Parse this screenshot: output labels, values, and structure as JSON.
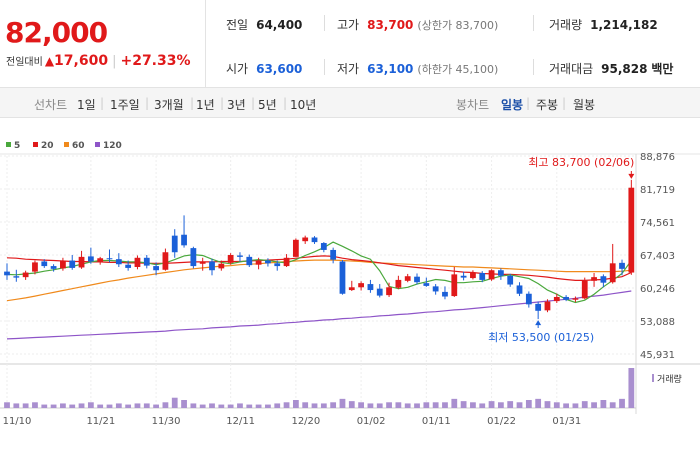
{
  "header": {
    "price": "82,000",
    "change_label": "전일대비",
    "change_arrow": "▲",
    "change_value": "17,600",
    "change_pct": "+27.33%",
    "stats": {
      "prev_close": {
        "label": "전일",
        "value": "64,400"
      },
      "high": {
        "label": "고가",
        "value": "83,700",
        "sub": "(상한가 83,700)"
      },
      "volume": {
        "label": "거래량",
        "value": "1,214,182"
      },
      "open": {
        "label": "시가",
        "value": "63,600"
      },
      "low": {
        "label": "저가",
        "value": "63,100",
        "sub": "(하한가 45,100)"
      },
      "amount": {
        "label": "거래대금",
        "value": "95,828",
        "unit": "백만"
      }
    }
  },
  "periods": {
    "label": "선차트",
    "items": [
      "1일",
      "1주일",
      "3개월",
      "1년",
      "3년",
      "5년",
      "10년"
    ]
  },
  "candle_types": {
    "label": "봉차트",
    "items": [
      "일봉",
      "주봉",
      "월봉"
    ],
    "active": "일봉"
  },
  "colors": {
    "up": "#e0191a",
    "down": "#1b60d8",
    "ma5": "#4aa83c",
    "ma20": "#e0191a",
    "ma60": "#f08a1c",
    "ma120": "#8e55c8",
    "volume": "#a98fcf"
  },
  "chart_data": {
    "type": "candlestick",
    "legend": [
      "5",
      "20",
      "60",
      "120"
    ],
    "y_ticks": [
      "88,876",
      "81,719",
      "74,561",
      "67,403",
      "60,246",
      "53,088",
      "45,931"
    ],
    "ylim": [
      45931,
      88876
    ],
    "x_ticks": [
      {
        "label": "11/10",
        "index": 0
      },
      {
        "label": "11/21",
        "index": 9
      },
      {
        "label": "11/30",
        "index": 16
      },
      {
        "label": "12/11",
        "index": 24
      },
      {
        "label": "12/20",
        "index": 31
      },
      {
        "label": "01/02",
        "index": 38
      },
      {
        "label": "01/11",
        "index": 45
      },
      {
        "label": "01/22",
        "index": 52
      },
      {
        "label": "01/31",
        "index": 59
      }
    ],
    "high_annotation": "최고 83,700 (02/06)",
    "low_annotation": "최저 53,500 (01/25)",
    "volume_label": "거래량",
    "candles": [
      {
        "o": 63800,
        "h": 65600,
        "l": 62000,
        "c": 63000
      },
      {
        "o": 62800,
        "h": 64200,
        "l": 61600,
        "c": 62500
      },
      {
        "o": 62600,
        "h": 64000,
        "l": 62000,
        "c": 63600
      },
      {
        "o": 63800,
        "h": 66200,
        "l": 63200,
        "c": 65800
      },
      {
        "o": 66000,
        "h": 66500,
        "l": 64600,
        "c": 65000
      },
      {
        "o": 65000,
        "h": 65400,
        "l": 63800,
        "c": 64400
      },
      {
        "o": 64500,
        "h": 66800,
        "l": 64000,
        "c": 66200
      },
      {
        "o": 66200,
        "h": 67400,
        "l": 64200,
        "c": 64600
      },
      {
        "o": 64700,
        "h": 68300,
        "l": 64400,
        "c": 67000
      },
      {
        "o": 67100,
        "h": 69000,
        "l": 65500,
        "c": 66000
      },
      {
        "o": 66000,
        "h": 67000,
        "l": 65300,
        "c": 66700
      },
      {
        "o": 66700,
        "h": 68600,
        "l": 65800,
        "c": 66500
      },
      {
        "o": 66500,
        "h": 67800,
        "l": 64800,
        "c": 65400
      },
      {
        "o": 65300,
        "h": 66200,
        "l": 64000,
        "c": 64600
      },
      {
        "o": 64800,
        "h": 67300,
        "l": 64300,
        "c": 66800
      },
      {
        "o": 66800,
        "h": 67400,
        "l": 64500,
        "c": 65100
      },
      {
        "o": 65000,
        "h": 65800,
        "l": 63000,
        "c": 64100
      },
      {
        "o": 64200,
        "h": 68800,
        "l": 64000,
        "c": 68000
      },
      {
        "o": 71600,
        "h": 73000,
        "l": 66800,
        "c": 68000
      },
      {
        "o": 71800,
        "h": 76000,
        "l": 69000,
        "c": 69500
      },
      {
        "o": 68900,
        "h": 69200,
        "l": 64500,
        "c": 65000
      },
      {
        "o": 65500,
        "h": 66800,
        "l": 64000,
        "c": 66000
      },
      {
        "o": 66000,
        "h": 66600,
        "l": 63000,
        "c": 64100
      },
      {
        "o": 64500,
        "h": 66200,
        "l": 64000,
        "c": 65500
      },
      {
        "o": 65700,
        "h": 67800,
        "l": 65300,
        "c": 67400
      },
      {
        "o": 67300,
        "h": 68000,
        "l": 66000,
        "c": 67000
      },
      {
        "o": 67000,
        "h": 67500,
        "l": 64800,
        "c": 65200
      },
      {
        "o": 65300,
        "h": 66800,
        "l": 64300,
        "c": 66100
      },
      {
        "o": 66200,
        "h": 66700,
        "l": 64900,
        "c": 65600
      },
      {
        "o": 65600,
        "h": 66200,
        "l": 64000,
        "c": 65000
      },
      {
        "o": 65000,
        "h": 67600,
        "l": 64800,
        "c": 66800
      },
      {
        "o": 67000,
        "h": 71000,
        "l": 67000,
        "c": 70700
      },
      {
        "o": 70400,
        "h": 71600,
        "l": 69800,
        "c": 71200
      },
      {
        "o": 71200,
        "h": 71500,
        "l": 69800,
        "c": 70200
      },
      {
        "o": 70000,
        "h": 70200,
        "l": 68000,
        "c": 68500
      },
      {
        "o": 68500,
        "h": 69000,
        "l": 65600,
        "c": 66400
      },
      {
        "o": 66000,
        "h": 66300,
        "l": 58800,
        "c": 59000
      },
      {
        "o": 59800,
        "h": 61800,
        "l": 59600,
        "c": 60400
      },
      {
        "o": 60400,
        "h": 61700,
        "l": 59700,
        "c": 61300
      },
      {
        "o": 61100,
        "h": 62000,
        "l": 59200,
        "c": 59800
      },
      {
        "o": 60100,
        "h": 61100,
        "l": 58200,
        "c": 58600
      },
      {
        "o": 58700,
        "h": 61400,
        "l": 58300,
        "c": 60400
      },
      {
        "o": 60300,
        "h": 62900,
        "l": 60000,
        "c": 62000
      },
      {
        "o": 61800,
        "h": 63300,
        "l": 61500,
        "c": 62800
      },
      {
        "o": 62700,
        "h": 63400,
        "l": 61000,
        "c": 61500
      },
      {
        "o": 61300,
        "h": 62500,
        "l": 60500,
        "c": 60700
      },
      {
        "o": 60600,
        "h": 61100,
        "l": 58800,
        "c": 59500
      },
      {
        "o": 59400,
        "h": 60600,
        "l": 57800,
        "c": 58400
      },
      {
        "o": 58500,
        "h": 64800,
        "l": 58300,
        "c": 63200
      },
      {
        "o": 62900,
        "h": 63800,
        "l": 61900,
        "c": 62500
      },
      {
        "o": 62400,
        "h": 64100,
        "l": 62100,
        "c": 63500
      },
      {
        "o": 63500,
        "h": 63900,
        "l": 61500,
        "c": 62000
      },
      {
        "o": 62100,
        "h": 64300,
        "l": 61800,
        "c": 64100
      },
      {
        "o": 64100,
        "h": 64500,
        "l": 62000,
        "c": 62900
      },
      {
        "o": 62900,
        "h": 63300,
        "l": 60500,
        "c": 61000
      },
      {
        "o": 60800,
        "h": 61500,
        "l": 58500,
        "c": 59000
      },
      {
        "o": 59000,
        "h": 59500,
        "l": 56000,
        "c": 56700
      },
      {
        "o": 56800,
        "h": 57300,
        "l": 53500,
        "c": 55300
      },
      {
        "o": 55400,
        "h": 57800,
        "l": 55000,
        "c": 57300
      },
      {
        "o": 57400,
        "h": 59000,
        "l": 57000,
        "c": 58300
      },
      {
        "o": 58300,
        "h": 58700,
        "l": 57400,
        "c": 57700
      },
      {
        "o": 57700,
        "h": 58400,
        "l": 57200,
        "c": 58000
      },
      {
        "o": 58000,
        "h": 62500,
        "l": 57800,
        "c": 61800
      },
      {
        "o": 61800,
        "h": 63500,
        "l": 60500,
        "c": 62600
      },
      {
        "o": 62800,
        "h": 63200,
        "l": 60400,
        "c": 61400
      },
      {
        "o": 61500,
        "h": 69800,
        "l": 61200,
        "c": 65600
      },
      {
        "o": 65700,
        "h": 66400,
        "l": 63000,
        "c": 64400
      },
      {
        "o": 63600,
        "h": 83700,
        "l": 63100,
        "c": 82000
      }
    ],
    "volumes": [
      5,
      4,
      4,
      5,
      3,
      3,
      4,
      3,
      4,
      5,
      3,
      3,
      4,
      3,
      4,
      4,
      3,
      5,
      9,
      7,
      4,
      3,
      4,
      3,
      3,
      4,
      3,
      3,
      3,
      4,
      5,
      7,
      5,
      4,
      4,
      5,
      8,
      6,
      5,
      4,
      4,
      5,
      5,
      4,
      4,
      5,
      5,
      5,
      8,
      6,
      5,
      4,
      6,
      5,
      6,
      5,
      7,
      8,
      6,
      5,
      4,
      4,
      6,
      5,
      7,
      5,
      8,
      35
    ],
    "ma5": [
      63200,
      63100,
      63300,
      63500,
      63900,
      64200,
      64600,
      64900,
      65400,
      65900,
      66200,
      66200,
      66100,
      65900,
      65900,
      65700,
      65300,
      65700,
      66400,
      67200,
      67500,
      67300,
      66500,
      65800,
      65500,
      65900,
      66200,
      66400,
      66200,
      65900,
      65700,
      66400,
      67300,
      68100,
      69000,
      70200,
      69300,
      68300,
      67200,
      66500,
      64000,
      60600,
      60100,
      60400,
      61100,
      61600,
      62100,
      61900,
      61400,
      61400,
      61600,
      61700,
      62300,
      62800,
      63100,
      62700,
      62300,
      61200,
      59800,
      58900,
      57800,
      57100,
      57600,
      58900,
      60500,
      61900,
      63400,
      66200
    ],
    "ma20": [
      66800,
      66700,
      66500,
      66400,
      66300,
      66200,
      66100,
      66000,
      66000,
      65900,
      65900,
      65800,
      65800,
      65700,
      65700,
      65600,
      65600,
      65600,
      65700,
      65800,
      65900,
      65900,
      65900,
      66000,
      66000,
      66000,
      66100,
      66200,
      66300,
      66400,
      66500,
      66700,
      66900,
      67100,
      67200,
      67100,
      66700,
      66400,
      66200,
      66000,
      65700,
      65400,
      65100,
      64900,
      64700,
      64500,
      64300,
      64100,
      63900,
      63700,
      63600,
      63400,
      63300,
      63200,
      63200,
      63100,
      63000,
      62800,
      62600,
      62300,
      62100,
      61900,
      61900,
      62000,
      62100,
      62400,
      62700,
      63600
    ],
    "ma60": [
      57500,
      57800,
      58100,
      58500,
      58900,
      59300,
      59700,
      60100,
      60500,
      60900,
      61300,
      61700,
      62000,
      62400,
      62700,
      63000,
      63300,
      63600,
      63900,
      64200,
      64400,
      64600,
      64800,
      65000,
      65100,
      65300,
      65400,
      65500,
      65700,
      65800,
      66000,
      66100,
      66200,
      66300,
      66300,
      66300,
      66200,
      66100,
      66000,
      65800,
      65700,
      65600,
      65500,
      65400,
      65300,
      65200,
      65100,
      65000,
      64900,
      64800,
      64800,
      64700,
      64600,
      64500,
      64400,
      64300,
      64200,
      64100,
      64000,
      63900,
      63800,
      63800,
      63800,
      63800,
      63800,
      63800,
      63900,
      64100
    ],
    "ma120": [
      49200,
      49300,
      49400,
      49500,
      49600,
      49700,
      49800,
      49900,
      50000,
      50100,
      50200,
      50300,
      50400,
      50500,
      50600,
      50700,
      50800,
      50900,
      51100,
      51200,
      51300,
      51400,
      51600,
      51700,
      51800,
      52000,
      52100,
      52200,
      52400,
      52500,
      52700,
      52800,
      53000,
      53100,
      53300,
      53400,
      53600,
      53700,
      53900,
      54000,
      54200,
      54300,
      54500,
      54600,
      54800,
      55000,
      55100,
      55300,
      55500,
      55600,
      55800,
      56000,
      56200,
      56400,
      56600,
      56800,
      57000,
      57200,
      57400,
      57600,
      57800,
      58000,
      58300,
      58500,
      58700,
      59000,
      59300,
      59600
    ]
  }
}
